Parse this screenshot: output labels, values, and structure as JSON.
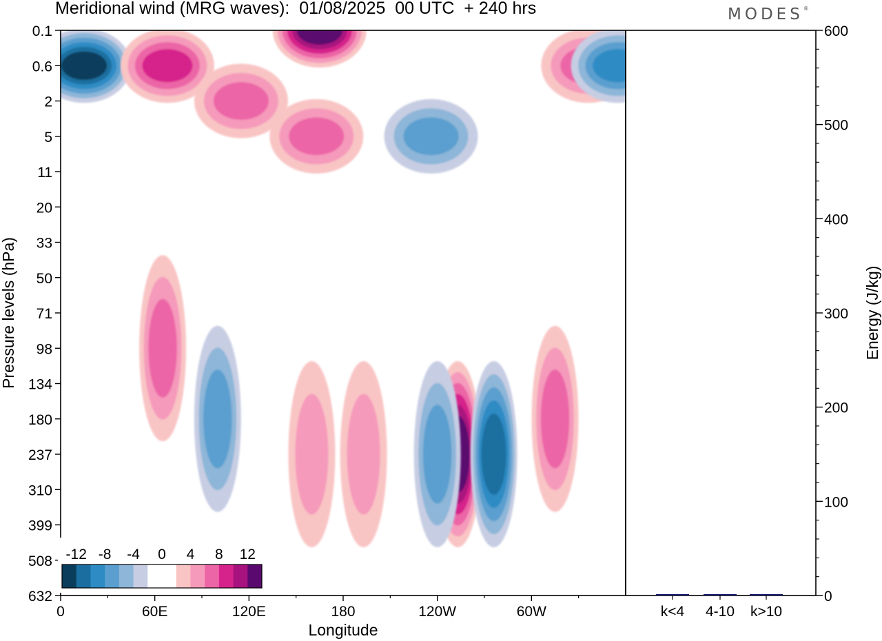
{
  "header": {
    "title": "Meridional wind (MRG waves):  01/08/2025  00 UTC  + 240 hrs",
    "logo": "MODES",
    "logo_mark": "®"
  },
  "chart_data": [
    {
      "type": "heatmap",
      "title": "Meridional wind (MRG waves):  01/08/2025  00 UTC  + 240 hrs",
      "xlabel": "Longitude",
      "ylabel": "Pressure levels (hPa)",
      "x_ticks": [
        "0",
        "60E",
        "120E",
        "180",
        "120W",
        "60W"
      ],
      "x_tick_values": [
        0,
        60,
        120,
        180,
        240,
        300
      ],
      "xlim": [
        0,
        360
      ],
      "y_ticks": [
        "0.1",
        "0.6",
        "2",
        "5",
        "11",
        "20",
        "33",
        "50",
        "71",
        "98",
        "134",
        "180",
        "237",
        "310",
        "399",
        "508",
        "632"
      ],
      "colorbar": {
        "labels": [
          "-12",
          "-8",
          "-4",
          "0",
          "4",
          "8",
          "12"
        ],
        "levels": [
          -14,
          -12,
          -10,
          -8,
          -6,
          -4,
          -2,
          2,
          4,
          6,
          8,
          10,
          12,
          14
        ],
        "colors": [
          "#0a3d5c",
          "#1a6fa0",
          "#2e8bc4",
          "#5a9fcf",
          "#8db6d8",
          "#c7cde3",
          "#ffffff",
          "#ffffff",
          "#f9c4c4",
          "#f59abb",
          "#ec65a6",
          "#d6238b",
          "#a8127e",
          "#5a0a6e"
        ]
      },
      "features": [
        {
          "lon": 15,
          "level": "0.6",
          "value": -14
        },
        {
          "lon": 165,
          "level": "0.1",
          "value": 14
        },
        {
          "lon": 68,
          "level": "0.6",
          "value": 10
        },
        {
          "lon": 163,
          "level": "5",
          "value": 8
        },
        {
          "lon": 115,
          "level": "2",
          "value": 8
        },
        {
          "lon": 253,
          "level": "237",
          "value": 14
        },
        {
          "lon": 276,
          "level": "237",
          "value": -12
        },
        {
          "lon": 240,
          "level": "237",
          "value": -8
        },
        {
          "lon": 100,
          "level": "180",
          "value": -8
        },
        {
          "lon": 65,
          "level": "98",
          "value": 8
        },
        {
          "lon": 315,
          "level": "180",
          "value": 8
        },
        {
          "lon": 236,
          "level": "5",
          "value": -8
        },
        {
          "lon": 336,
          "level": "0.6",
          "value": 8
        },
        {
          "lon": 160,
          "level": "237",
          "value": 6
        },
        {
          "lon": 193,
          "level": "237",
          "value": 6
        },
        {
          "lon": 355,
          "level": "0.6",
          "value": -10
        }
      ]
    },
    {
      "type": "bar",
      "ylabel": "Energy (J/kg)",
      "categories": [
        "k<4",
        "4-10",
        "k>10"
      ],
      "values": [
        0.3,
        1.5,
        0.3
      ],
      "ylim": [
        0,
        600
      ],
      "y_ticks": [
        "0",
        "100",
        "200",
        "300",
        "400",
        "500",
        "600"
      ],
      "bar_color": "#1a1a6e"
    }
  ]
}
